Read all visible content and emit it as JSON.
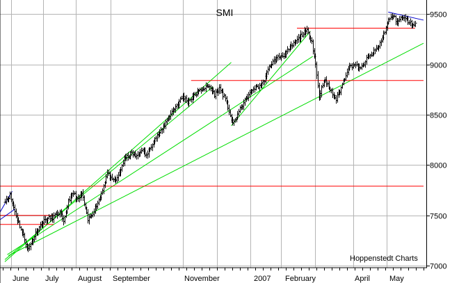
{
  "chart_data": {
    "type": "ohlc",
    "title": "SMI",
    "watermark": "Hoppenstedt Charts",
    "ylim": [
      6980,
      9640
    ],
    "y_ticks": [
      9500,
      9000,
      8500,
      8000,
      7500,
      7000
    ],
    "x_labels": [
      "June",
      "July",
      "August",
      "September",
      "November",
      "2007",
      "February",
      "April",
      "May"
    ],
    "grid": true,
    "colors": {
      "grid": "#b4b4b4",
      "price": "#000000",
      "support": "#00dd00",
      "resistance": "#ff0000",
      "triangle": "#0000cc"
    },
    "anchors": [
      [
        0,
        7650
      ],
      [
        4,
        7700
      ],
      [
        10,
        7460
      ],
      [
        14,
        7330
      ],
      [
        19,
        7160
      ],
      [
        26,
        7350
      ],
      [
        33,
        7460
      ],
      [
        39,
        7480
      ],
      [
        45,
        7530
      ],
      [
        48,
        7420
      ],
      [
        52,
        7650
      ],
      [
        56,
        7720
      ],
      [
        60,
        7650
      ],
      [
        63,
        7720
      ],
      [
        68,
        7450
      ],
      [
        73,
        7550
      ],
      [
        78,
        7680
      ],
      [
        84,
        7920
      ],
      [
        88,
        7840
      ],
      [
        92,
        7860
      ],
      [
        98,
        8060
      ],
      [
        104,
        8120
      ],
      [
        108,
        8080
      ],
      [
        112,
        8160
      ],
      [
        116,
        8090
      ],
      [
        122,
        8250
      ],
      [
        128,
        8330
      ],
      [
        134,
        8470
      ],
      [
        140,
        8580
      ],
      [
        146,
        8680
      ],
      [
        150,
        8630
      ],
      [
        156,
        8700
      ],
      [
        162,
        8760
      ],
      [
        168,
        8780
      ],
      [
        172,
        8700
      ],
      [
        176,
        8760
      ],
      [
        180,
        8680
      ],
      [
        184,
        8540
      ],
      [
        187,
        8400
      ],
      [
        190,
        8480
      ],
      [
        195,
        8600
      ],
      [
        199,
        8680
      ],
      [
        204,
        8760
      ],
      [
        208,
        8780
      ],
      [
        212,
        8820
      ],
      [
        218,
        9000
      ],
      [
        224,
        9070
      ],
      [
        230,
        9100
      ],
      [
        236,
        9190
      ],
      [
        240,
        9240
      ],
      [
        244,
        9300
      ],
      [
        248,
        9330
      ],
      [
        252,
        9230
      ],
      [
        255,
        9000
      ],
      [
        258,
        8680
      ],
      [
        262,
        8850
      ],
      [
        267,
        8750
      ],
      [
        272,
        8650
      ],
      [
        277,
        8800
      ],
      [
        282,
        8970
      ],
      [
        287,
        9000
      ],
      [
        292,
        8950
      ],
      [
        297,
        9050
      ],
      [
        302,
        9110
      ],
      [
        307,
        9180
      ],
      [
        311,
        9300
      ],
      [
        315,
        9440
      ],
      [
        319,
        9480
      ],
      [
        322,
        9420
      ],
      [
        326,
        9470
      ],
      [
        330,
        9440
      ],
      [
        334,
        9400
      ],
      [
        337,
        9410
      ]
    ],
    "lines": {
      "support": [
        {
          "points": [
            [
              0,
              7040
            ],
            [
              186,
              9020
            ]
          ]
        },
        {
          "points": [
            [
              0,
              7060
            ],
            [
              171,
              8780
            ]
          ]
        },
        {
          "points": [
            [
              2,
              7110
            ],
            [
              253,
              9080
            ]
          ]
        },
        {
          "points": [
            [
              3,
              7100
            ],
            [
              344,
              9210
            ]
          ]
        },
        {
          "points": [
            [
              186,
              8390
            ],
            [
              251,
              9330
            ]
          ]
        }
      ],
      "resistance": [
        {
          "points": [
            [
              -6,
              7790
            ],
            [
              344,
              7790
            ]
          ]
        },
        {
          "points": [
            [
              -6,
              7500
            ],
            [
              40,
              7500
            ]
          ]
        },
        {
          "points": [
            [
              -6,
              7410
            ],
            [
              40,
              7410
            ]
          ]
        },
        {
          "points": [
            [
              153,
              8840
            ],
            [
              344,
              8840
            ]
          ]
        },
        {
          "points": [
            [
              240,
              9360
            ],
            [
              337,
              9360
            ]
          ]
        }
      ],
      "triangle": [
        {
          "points": [
            [
              -6,
              7490
            ],
            [
              6,
              7740
            ]
          ]
        },
        {
          "points": [
            [
              -6,
              7440
            ],
            [
              8,
              7560
            ]
          ]
        },
        {
          "points": [
            [
              315,
              9520
            ],
            [
              344,
              9440
            ]
          ]
        }
      ]
    }
  }
}
